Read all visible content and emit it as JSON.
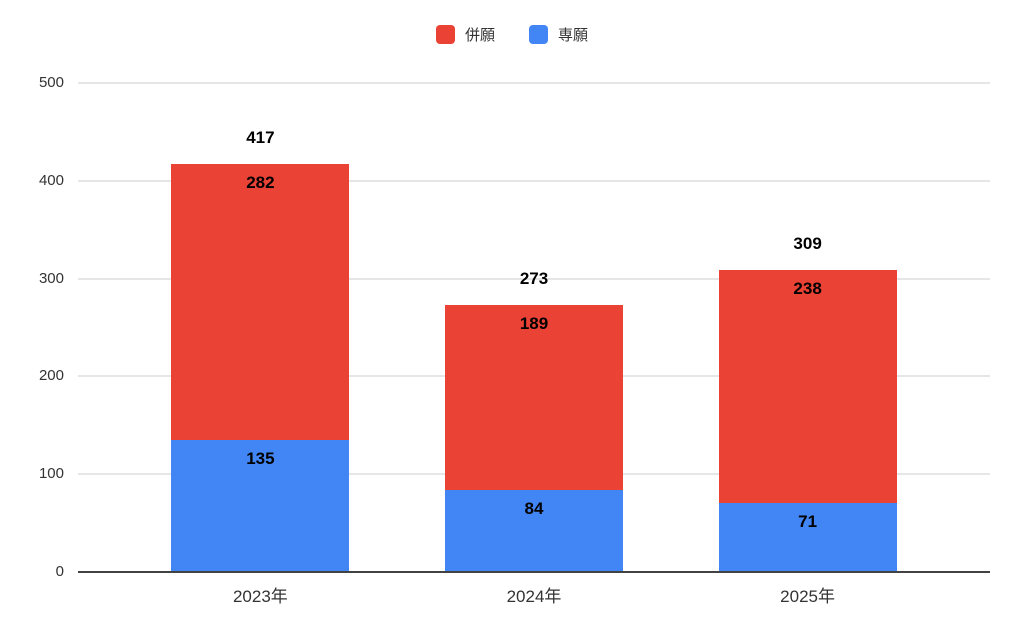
{
  "chart_data": {
    "type": "bar",
    "stacked": true,
    "title": "",
    "xlabel": "",
    "ylabel": "",
    "categories": [
      "2023年",
      "2024年",
      "2025年"
    ],
    "series": [
      {
        "name": "併願",
        "color": "#EA4335",
        "values": [
          282,
          189,
          238
        ]
      },
      {
        "name": "専願",
        "color": "#4285F4",
        "values": [
          135,
          84,
          71
        ]
      }
    ],
    "totals": [
      417,
      273,
      309
    ],
    "ylim": [
      0,
      500
    ],
    "yticks": [
      0,
      100,
      200,
      300,
      400,
      500
    ],
    "grid": true,
    "legend_position": "top-center"
  },
  "colors": {
    "background": "#ffffff",
    "grid": "#e6e6e6",
    "axis_baseline": "#424242",
    "tick_text": "#333333",
    "value_label": "#000000"
  }
}
